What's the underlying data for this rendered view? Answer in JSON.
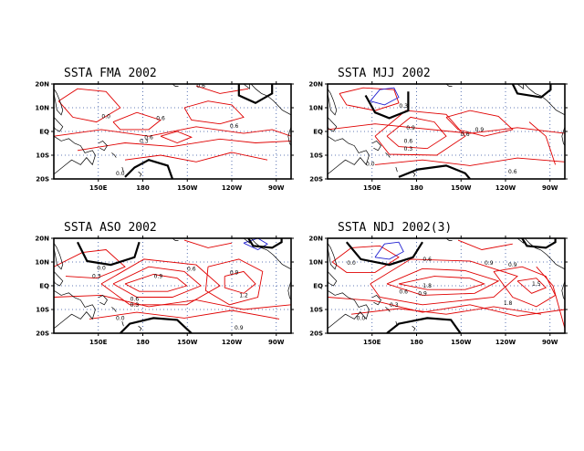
{
  "colors": {
    "positive_contour": "#e00000",
    "negative_contour": "#2020d0",
    "zero_contour": "#000000",
    "coastline": "#000000",
    "gridline": "#3050a0"
  },
  "lon_ticks": [
    "150E",
    "180",
    "150W",
    "120W",
    "90W"
  ],
  "lat_ticks": [
    "20N",
    "10N",
    "EQ",
    "10S",
    "20S"
  ],
  "panels": [
    {
      "id": "fma",
      "title": "SSTA FMA 2002",
      "contour_labels": [
        "0.6",
        "0.0",
        "0.6",
        "0.6",
        "0.3",
        "0.6",
        "0.0"
      ]
    },
    {
      "id": "mjj",
      "title": "SSTA MJJ 2002",
      "contour_labels": [
        "0.3",
        "0.9",
        "0.6",
        "0.3",
        "0.6",
        "0.9",
        "0.0",
        "0.6"
      ]
    },
    {
      "id": "aso",
      "title": "SSTA ASO 2002",
      "contour_labels": [
        "0.0",
        "0.3",
        "0.9",
        "0.6",
        "0.9",
        "1.2",
        "0.6",
        "0.3",
        "0.0",
        "0.9"
      ]
    },
    {
      "id": "ndj",
      "title": "SSTA NDJ 2002(3)",
      "contour_labels": [
        "0.0",
        "0.6",
        "0.9",
        "1.8",
        "0.6",
        "0.9",
        "1.5",
        "0.3",
        "1.8",
        "0.9",
        "0.0"
      ]
    }
  ]
}
